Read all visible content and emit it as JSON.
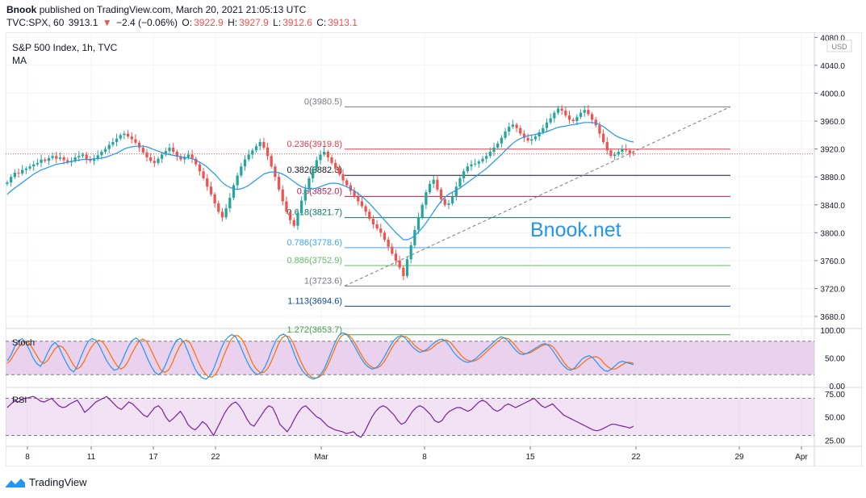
{
  "header": {
    "author": "Bnook",
    "published": "published on TradingView.com, March 20, 2021 21:05:13 UTC",
    "symbol": "TVC:SPX, 60",
    "last": "3913.1",
    "change": "−2.4 (−0.06%)",
    "o_label": "O:",
    "o": "3922.9",
    "h_label": "H:",
    "h": "3927.9",
    "l_label": "L:",
    "l": "3912.6",
    "c_label": "C:",
    "c": "3913.1"
  },
  "legend": {
    "title": "S&P 500 Index, 1h, TVC",
    "ma": "MA"
  },
  "watermark": "Bnook.net",
  "currency": "USD",
  "indicators": {
    "stoch": "Stoch",
    "rsi": "RSI"
  },
  "footer": {
    "brand": "TradingView"
  },
  "colors": {
    "up": "#26a69a",
    "down": "#ef5350",
    "ma": "#2196f3",
    "watermark": "#2196f3",
    "stoch_k": "#2196f3",
    "stoch_d": "#ff6d00",
    "stoch_band": "#e1bee7",
    "rsi": "#7b1fa2"
  },
  "chart_data": {
    "type": "candlestick",
    "price_axis": {
      "ticks": [
        4080,
        4040,
        4000,
        3960,
        3920,
        3880,
        3840,
        3800,
        3760,
        3720,
        3680
      ],
      "range": [
        3665,
        4085
      ]
    },
    "time_axis": {
      "ticks": [
        "8",
        "11",
        "17",
        "22",
        "Mar",
        "8",
        "15",
        "22",
        "29",
        "Apr"
      ]
    },
    "last_price": 3913.1,
    "fibonacci": [
      {
        "level": "0",
        "price": 3980.5,
        "label": "0(3980.5)",
        "color": "#787b86"
      },
      {
        "level": "0.236",
        "price": 3919.8,
        "label": "0.236(3919.8)",
        "color": "#f23645"
      },
      {
        "level": "0.382",
        "price": 3882.3,
        "label": "0.382(3882.3)",
        "color": "#131722"
      },
      {
        "level": "0.5",
        "price": 3852.0,
        "label": "0.5(3852.0)",
        "color": "#b71c55"
      },
      {
        "level": "0.618",
        "price": 3821.7,
        "label": "0.618(3821.7)",
        "color": "#0b7a5e"
      },
      {
        "level": "0.786",
        "price": 3778.6,
        "label": "0.786(3778.6)",
        "color": "#42a5f5"
      },
      {
        "level": "0.886",
        "price": 3752.9,
        "label": "0.886(3752.9)",
        "color": "#66bb6a"
      },
      {
        "level": "1",
        "price": 3723.6,
        "label": "1(3723.6)",
        "color": "#787b86"
      },
      {
        "level": "1.113",
        "price": 3694.6,
        "label": "1.113(3694.6)",
        "color": "#0d47a1"
      },
      {
        "level": "1.272",
        "price": 3653.7,
        "label": "1.272(3653.7)",
        "color": "#43a047"
      }
    ],
    "closes": [
      3872,
      3880,
      3886,
      3885,
      3890,
      3892,
      3895,
      3898,
      3900,
      3905,
      3903,
      3907,
      3910,
      3906,
      3908,
      3904,
      3901,
      3903,
      3908,
      3910,
      3912,
      3905,
      3903,
      3906,
      3911,
      3916,
      3920,
      3926,
      3930,
      3935,
      3940,
      3942,
      3938,
      3934,
      3929,
      3922,
      3915,
      3908,
      3903,
      3900,
      3906,
      3912,
      3917,
      3922,
      3916,
      3909,
      3905,
      3908,
      3912,
      3906,
      3898,
      3888,
      3878,
      3866,
      3855,
      3842,
      3830,
      3822,
      3835,
      3850,
      3868,
      3882,
      3895,
      3905,
      3912,
      3918,
      3924,
      3930,
      3922,
      3910,
      3895,
      3880,
      3862,
      3845,
      3830,
      3818,
      3810,
      3828,
      3846,
      3862,
      3878,
      3892,
      3904,
      3912,
      3916,
      3908,
      3900,
      3892,
      3884,
      3875,
      3868,
      3860,
      3852,
      3845,
      3838,
      3830,
      3820,
      3812,
      3806,
      3800,
      3790,
      3780,
      3770,
      3760,
      3750,
      3738,
      3762,
      3782,
      3804,
      3822,
      3840,
      3858,
      3870,
      3876,
      3862,
      3848,
      3840,
      3842,
      3852,
      3866,
      3878,
      3888,
      3895,
      3898,
      3899,
      3902,
      3906,
      3910,
      3916,
      3922,
      3928,
      3936,
      3945,
      3952,
      3955,
      3950,
      3942,
      3936,
      3932,
      3934,
      3938,
      3944,
      3950,
      3958,
      3964,
      3972,
      3978,
      3975,
      3968,
      3962,
      3960,
      3966,
      3972,
      3976,
      3970,
      3962,
      3954,
      3942,
      3930,
      3918,
      3910,
      3912,
      3916,
      3920,
      3918,
      3914,
      3913
    ],
    "price_ma": [
      3855,
      3860,
      3864,
      3868,
      3872,
      3876,
      3880,
      3884,
      3887,
      3890,
      3892,
      3894,
      3896,
      3898,
      3899,
      3900,
      3901,
      3902,
      3903,
      3904,
      3905,
      3905,
      3905,
      3906,
      3906,
      3907,
      3908,
      3910,
      3912,
      3914,
      3917,
      3920,
      3922,
      3923,
      3924,
      3924,
      3924,
      3923,
      3921,
      3919,
      3917,
      3915,
      3913,
      3912,
      3911,
      3910,
      3909,
      3908,
      3907,
      3906,
      3904,
      3901,
      3898,
      3894,
      3889,
      3884,
      3878,
      3872,
      3868,
      3865,
      3863,
      3862,
      3863,
      3865,
      3868,
      3872,
      3876,
      3880,
      3884,
      3886,
      3887,
      3887,
      3886,
      3884,
      3881,
      3877,
      3873,
      3869,
      3866,
      3864,
      3863,
      3863,
      3864,
      3866,
      3868,
      3870,
      3871,
      3871,
      3870,
      3868,
      3866,
      3863,
      3860,
      3856,
      3852,
      3847,
      3842,
      3836,
      3830,
      3824,
      3818,
      3812,
      3806,
      3800,
      3795,
      3790,
      3790,
      3792,
      3796,
      3801,
      3807,
      3814,
      3822,
      3830,
      3838,
      3845,
      3851,
      3855,
      3858,
      3861,
      3864,
      3868,
      3872,
      3876,
      3880,
      3884,
      3888,
      3892,
      3897,
      3902,
      3907,
      3912,
      3918,
      3923,
      3928,
      3932,
      3935,
      3937,
      3939,
      3940,
      3941,
      3942,
      3943,
      3945,
      3947,
      3949,
      3951,
      3952,
      3953,
      3954,
      3955,
      3956,
      3957,
      3958,
      3958,
      3958,
      3957,
      3955,
      3952,
      3948,
      3944,
      3940,
      3937,
      3935,
      3933,
      3931,
      3930
    ],
    "stoch": {
      "range": [
        0,
        100
      ],
      "ticks": [
        100,
        50,
        0
      ],
      "bands": [
        80,
        20
      ],
      "k": [
        45,
        55,
        70,
        80,
        85,
        78,
        65,
        50,
        40,
        35,
        45,
        60,
        72,
        78,
        70,
        55,
        42,
        30,
        25,
        35,
        52,
        68,
        80,
        85,
        82,
        72,
        58,
        45,
        35,
        28,
        30,
        42,
        58,
        72,
        82,
        86,
        80,
        66,
        50,
        36,
        25,
        20,
        25,
        38,
        55,
        70,
        82,
        85,
        78,
        62,
        45,
        30,
        20,
        14,
        12,
        18,
        30,
        48,
        66,
        80,
        88,
        92,
        88,
        76,
        60,
        45,
        32,
        24,
        20,
        24,
        34,
        50,
        68,
        82,
        90,
        93,
        88,
        74,
        56,
        40,
        28,
        20,
        15,
        12,
        14,
        20,
        30,
        45,
        62,
        78,
        90,
        95,
        93,
        85,
        74,
        62,
        50,
        40,
        34,
        30,
        32,
        38,
        48,
        60,
        72,
        82,
        88,
        90,
        86,
        78,
        70,
        64,
        60,
        62,
        66,
        72,
        78,
        82,
        84,
        80,
        72,
        62,
        54,
        48,
        44,
        42,
        44,
        48,
        54,
        60,
        66,
        72,
        78,
        84,
        88,
        86,
        80,
        72,
        64,
        58,
        56,
        58,
        62,
        66,
        70,
        74,
        76,
        72,
        64,
        54,
        44,
        36,
        30,
        28,
        32,
        40,
        48,
        52,
        54,
        50,
        42,
        34,
        28,
        26,
        30,
        36,
        42,
        44,
        42,
        40,
        38
      ],
      "d": [
        40,
        47,
        58,
        68,
        76,
        80,
        76,
        66,
        55,
        44,
        40,
        45,
        56,
        66,
        72,
        70,
        62,
        50,
        38,
        30,
        34,
        44,
        58,
        70,
        78,
        82,
        79,
        70,
        58,
        46,
        36,
        30,
        34,
        44,
        58,
        70,
        80,
        84,
        80,
        68,
        54,
        40,
        28,
        24,
        28,
        40,
        56,
        70,
        80,
        82,
        76,
        62,
        46,
        32,
        22,
        16,
        16,
        22,
        34,
        52,
        68,
        82,
        90,
        90,
        84,
        72,
        56,
        40,
        30,
        24,
        24,
        30,
        42,
        58,
        74,
        86,
        90,
        88,
        78,
        62,
        46,
        32,
        22,
        16,
        14,
        15,
        20,
        30,
        44,
        60,
        76,
        88,
        93,
        92,
        86,
        76,
        64,
        52,
        42,
        36,
        32,
        32,
        36,
        44,
        56,
        68,
        78,
        86,
        89,
        88,
        82,
        74,
        68,
        64,
        62,
        64,
        68,
        74,
        78,
        82,
        82,
        78,
        70,
        62,
        54,
        48,
        45,
        44,
        46,
        50,
        56,
        62,
        68,
        74,
        80,
        85,
        86,
        84,
        78,
        70,
        62,
        58,
        58,
        60,
        64,
        68,
        72,
        74,
        74,
        70,
        62,
        52,
        42,
        34,
        30,
        30,
        34,
        40,
        46,
        50,
        52,
        52,
        48,
        40,
        34,
        30,
        30,
        34,
        38,
        42,
        42,
        40
      ]
    },
    "rsi": {
      "range": [
        20,
        80
      ],
      "ticks": [
        75,
        50,
        25
      ],
      "bands": [
        70,
        30
      ],
      "values": [
        60,
        64,
        67,
        66,
        69,
        70,
        71,
        72,
        70,
        67,
        66,
        68,
        70,
        66,
        62,
        60,
        61,
        64,
        66,
        68,
        62,
        55,
        58,
        62,
        66,
        68,
        70,
        72,
        68,
        64,
        60,
        58,
        62,
        66,
        64,
        60,
        56,
        52,
        50,
        55,
        60,
        62,
        58,
        50,
        45,
        48,
        52,
        56,
        50,
        42,
        38,
        36,
        40,
        45,
        42,
        36,
        30,
        38,
        46,
        54,
        60,
        64,
        66,
        62,
        56,
        48,
        42,
        40,
        46,
        52,
        58,
        62,
        60,
        52,
        42,
        38,
        34,
        40,
        48,
        55,
        60,
        62,
        58,
        54,
        50,
        48,
        44,
        40,
        38,
        36,
        35,
        34,
        32,
        33,
        34,
        30,
        28,
        34,
        42,
        50,
        56,
        60,
        62,
        60,
        56,
        52,
        46,
        42,
        44,
        50,
        56,
        60,
        62,
        60,
        56,
        52,
        46,
        44,
        46,
        52,
        56,
        58,
        60,
        60,
        58,
        56,
        58,
        62,
        66,
        68,
        66,
        62,
        58,
        56,
        58,
        62,
        64,
        62,
        60,
        62,
        64,
        66,
        68,
        70,
        66,
        62,
        60,
        62,
        64,
        60,
        56,
        52,
        50,
        48,
        46,
        44,
        42,
        40,
        38,
        36,
        35,
        36,
        38,
        40,
        42,
        42,
        41,
        40,
        39,
        38,
        40
      ]
    }
  }
}
